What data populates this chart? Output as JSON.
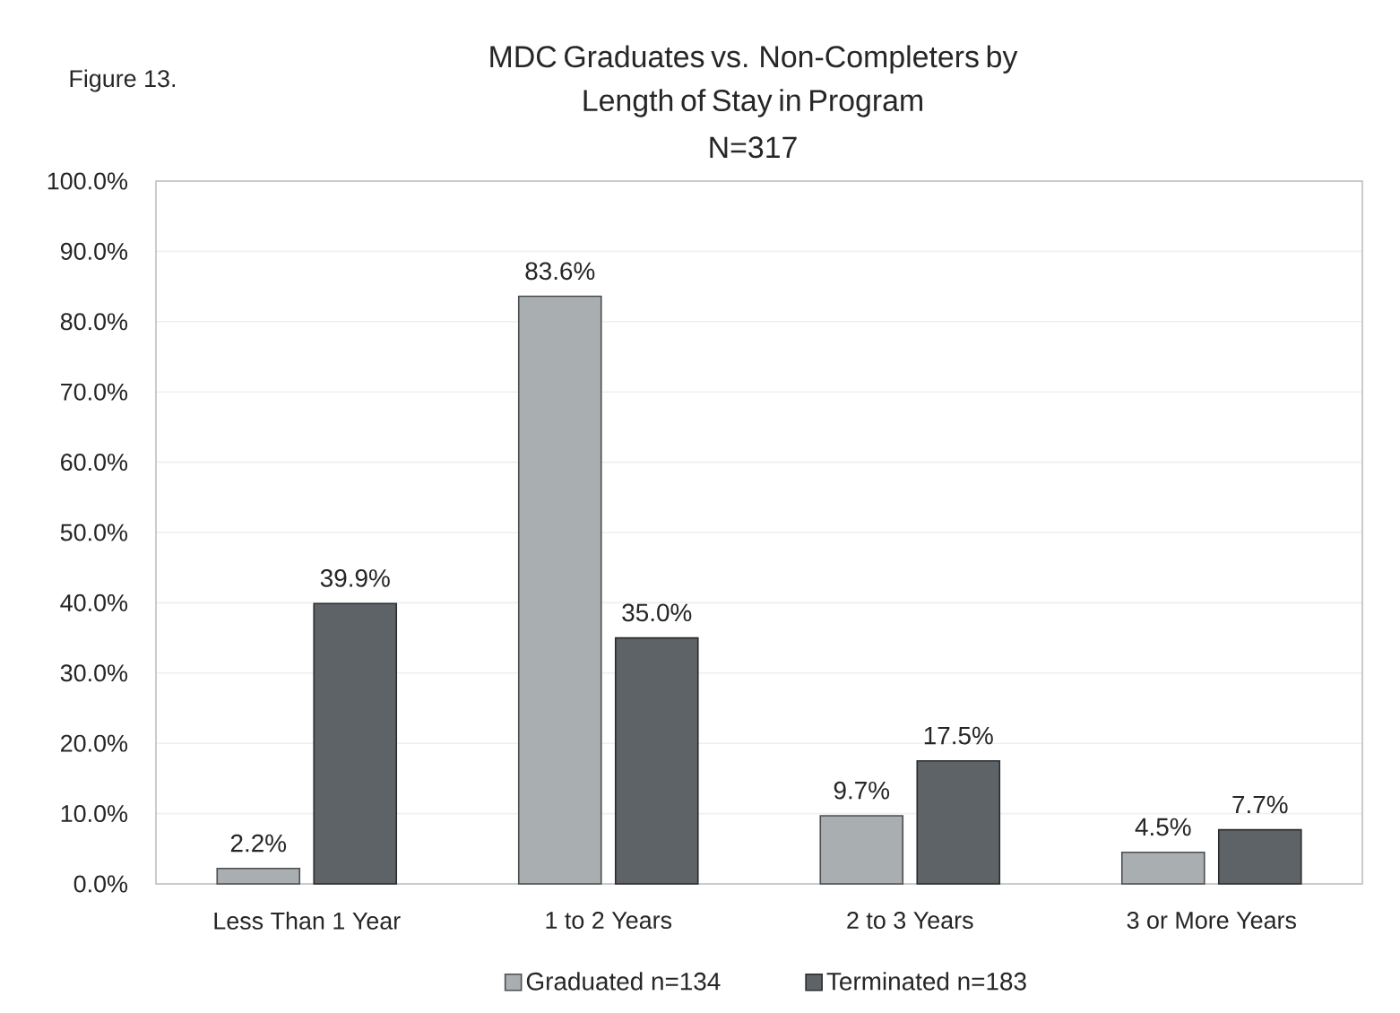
{
  "chart_data": {
    "type": "bar",
    "title": "MDC Graduates vs. Non-Completers by Length of Stay in Program",
    "subtitle": "N=317",
    "annotations": [
      "Figure 13."
    ],
    "categories": [
      "Less Than 1 Year",
      "1 to 2 Years",
      "2 to 3 Years",
      "3 or More Years"
    ],
    "series": [
      {
        "name": "Graduated n=134",
        "color": "#a9aeb1",
        "values": [
          2.2,
          83.6,
          9.7,
          4.5
        ],
        "value_labels": [
          "2.2%",
          "83.6%",
          "9.7%",
          "4.5%"
        ]
      },
      {
        "name": "Terminated n=183",
        "color": "#5e6367",
        "values": [
          39.9,
          35.0,
          17.5,
          7.7
        ],
        "value_labels": [
          "39.9%",
          "35.0%",
          "17.5%",
          "7.7%"
        ]
      }
    ],
    "ylim": [
      0,
      100
    ],
    "yticks": [
      {
        "value": 0,
        "label": "0.0%"
      },
      {
        "value": 10,
        "label": "10.0%"
      },
      {
        "value": 20,
        "label": "20.0%"
      },
      {
        "value": 30,
        "label": "30.0%"
      },
      {
        "value": 40,
        "label": "40.0%"
      },
      {
        "value": 50,
        "label": "50.0%"
      },
      {
        "value": 60,
        "label": "60.0%"
      },
      {
        "value": 70,
        "label": "70.0%"
      },
      {
        "value": 80,
        "label": "80.0%"
      },
      {
        "value": 90,
        "label": "90.0%"
      },
      {
        "value": 100,
        "label": "100.0%"
      }
    ],
    "grid": "y",
    "legend": "bottom"
  }
}
